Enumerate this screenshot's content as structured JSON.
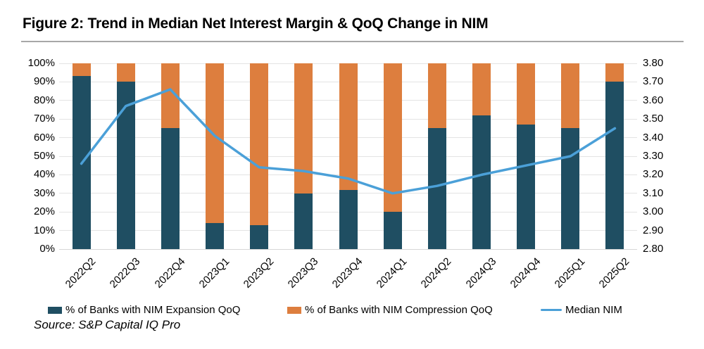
{
  "title": "Figure 2: Trend in Median Net Interest Margin & QoQ Change in NIM",
  "source": "Source: S&P Capital IQ Pro",
  "colors": {
    "expansion_bar": "#1f4e62",
    "compression_bar": "#dd7e3e",
    "median_nim_line": "#4ba0d8"
  },
  "legend": [
    {
      "label": "% of Banks with NIM Expansion QoQ",
      "type": "bar",
      "color": "#1f4e62"
    },
    {
      "label": "% of Banks with NIM Compression QoQ",
      "type": "bar",
      "color": "#dd7e3e"
    },
    {
      "label": "Median NIM",
      "type": "line",
      "color": "#4ba0d8"
    }
  ],
  "chart_data": {
    "type": "bar",
    "subtype": "stacked-100pct-columns-with-line-overlay",
    "title": "Figure 2: Trend in Median Net Interest Margin & QoQ Change in NIM",
    "categories": [
      "2022Q2",
      "2022Q3",
      "2022Q4",
      "2023Q1",
      "2023Q2",
      "2023Q3",
      "2023Q4",
      "2024Q1",
      "2024Q2",
      "2024Q3",
      "2024Q4",
      "2025Q1",
      "2025Q2"
    ],
    "series": [
      {
        "name": "% of Banks with NIM Expansion QoQ",
        "type": "bar",
        "axis": "left",
        "color": "#1f4e62",
        "values": [
          93,
          90,
          65,
          14,
          13,
          30,
          32,
          20,
          65,
          72,
          67,
          65,
          90
        ]
      },
      {
        "name": "% of Banks with NIM Compression QoQ",
        "type": "bar",
        "axis": "left",
        "color": "#dd7e3e",
        "values": [
          7,
          10,
          35,
          86,
          87,
          70,
          68,
          80,
          35,
          28,
          33,
          35,
          10
        ]
      },
      {
        "name": "Median NIM",
        "type": "line",
        "axis": "right",
        "color": "#4ba0d8",
        "values": [
          3.26,
          3.57,
          3.66,
          3.41,
          3.24,
          3.22,
          3.18,
          3.1,
          3.14,
          3.2,
          3.25,
          3.3,
          3.45
        ]
      }
    ],
    "left_axis": {
      "min": 0,
      "max": 100,
      "step": 10,
      "tick_labels_top_to_bottom": [
        "100%",
        "90%",
        "80%",
        "70%",
        "60%",
        "50%",
        "40%",
        "30%",
        "20%",
        "10%",
        "0%"
      ]
    },
    "right_axis": {
      "min": 2.8,
      "max": 3.8,
      "step": 0.1,
      "tick_labels_top_to_bottom": [
        "3.80",
        "3.70",
        "3.60",
        "3.50",
        "3.40",
        "3.30",
        "3.20",
        "3.10",
        "3.00",
        "2.90",
        "2.80"
      ]
    },
    "grid": true,
    "legend_position": "bottom"
  }
}
